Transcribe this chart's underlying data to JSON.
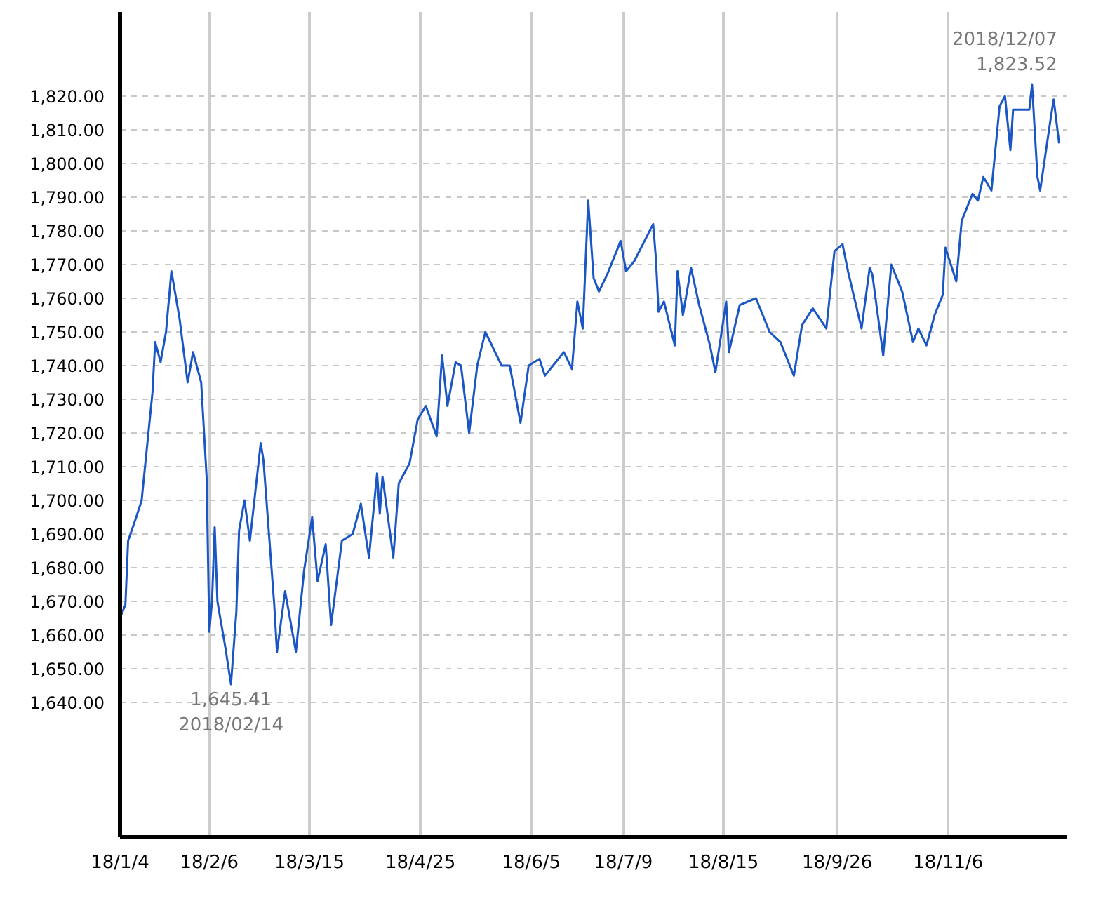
{
  "chart_data": {
    "type": "line",
    "x": [
      "2018-01-04",
      "2018-01-06",
      "2018-01-07",
      "2018-01-10",
      "2018-01-12",
      "2018-01-16",
      "2018-01-17",
      "2018-01-19",
      "2018-01-21",
      "2018-01-23",
      "2018-01-26",
      "2018-01-29",
      "2018-01-31",
      "2018-02-03",
      "2018-02-05",
      "2018-02-06",
      "2018-02-07",
      "2018-02-08",
      "2018-02-09",
      "2018-02-12",
      "2018-02-14",
      "2018-02-16",
      "2018-02-17",
      "2018-02-19",
      "2018-02-21",
      "2018-02-25",
      "2018-02-26",
      "2018-03-02",
      "2018-03-03",
      "2018-03-06",
      "2018-03-10",
      "2018-03-13",
      "2018-03-16",
      "2018-03-18",
      "2018-03-21",
      "2018-03-23",
      "2018-03-27",
      "2018-03-31",
      "2018-04-03",
      "2018-04-06",
      "2018-04-09",
      "2018-04-10",
      "2018-04-11",
      "2018-04-15",
      "2018-04-17",
      "2018-04-21",
      "2018-04-24",
      "2018-04-27",
      "2018-05-01",
      "2018-05-03",
      "2018-05-05",
      "2018-05-08",
      "2018-05-10",
      "2018-05-13",
      "2018-05-16",
      "2018-05-19",
      "2018-05-25",
      "2018-05-28",
      "2018-06-01",
      "2018-06-04",
      "2018-06-08",
      "2018-06-10",
      "2018-06-17",
      "2018-06-20",
      "2018-06-22",
      "2018-06-24",
      "2018-06-26",
      "2018-06-28",
      "2018-06-30",
      "2018-07-03",
      "2018-07-08",
      "2018-07-10",
      "2018-07-13",
      "2018-07-20",
      "2018-07-21",
      "2018-07-22",
      "2018-07-24",
      "2018-07-28",
      "2018-07-29",
      "2018-07-31",
      "2018-08-03",
      "2018-08-06",
      "2018-08-10",
      "2018-08-12",
      "2018-08-16",
      "2018-08-17",
      "2018-08-21",
      "2018-08-27",
      "2018-09-01",
      "2018-09-05",
      "2018-09-10",
      "2018-09-13",
      "2018-09-17",
      "2018-09-22",
      "2018-09-25",
      "2018-09-28",
      "2018-09-30",
      "2018-10-05",
      "2018-10-08",
      "2018-10-09",
      "2018-10-13",
      "2018-10-16",
      "2018-10-20",
      "2018-10-24",
      "2018-10-26",
      "2018-10-29",
      "2018-11-01",
      "2018-11-04",
      "2018-11-05",
      "2018-11-09",
      "2018-11-11",
      "2018-11-15",
      "2018-11-17",
      "2018-11-19",
      "2018-11-22",
      "2018-11-25",
      "2018-11-27",
      "2018-11-29",
      "2018-11-30",
      "2018-12-06",
      "2018-12-07",
      "2018-12-09",
      "2018-12-10",
      "2018-12-14",
      "2018-12-15",
      "2018-12-17"
    ],
    "series": [
      {
        "color": "#1a56c4",
        "values": [
          1665,
          1669,
          1688,
          1695,
          1700,
          1732,
          1747,
          1741,
          1750,
          1768,
          1754,
          1735,
          1744,
          1735,
          1707,
          1661,
          1670,
          1692,
          1670,
          1656,
          1645.41,
          1667,
          1691,
          1700,
          1688,
          1717,
          1712,
          1669,
          1655,
          1673,
          1655,
          1679,
          1695,
          1676,
          1687,
          1663,
          1688,
          1690,
          1699,
          1683,
          1708,
          1696,
          1707,
          1683,
          1705,
          1711,
          1724,
          1728,
          1719,
          1743,
          1728,
          1741,
          1740,
          1720,
          1740,
          1750,
          1740,
          1740,
          1723,
          1740,
          1742,
          1737,
          1744,
          1739,
          1759,
          1751,
          1789,
          1766,
          1762,
          1767,
          1777,
          1768,
          1771,
          1782,
          1772,
          1756,
          1759,
          1746,
          1768,
          1755,
          1769,
          1758,
          1746,
          1738,
          1759,
          1744,
          1758,
          1760,
          1750,
          1747,
          1737,
          1752,
          1757,
          1751,
          1774,
          1776,
          1768,
          1751,
          1769,
          1767,
          1743,
          1770,
          1762,
          1747,
          1751,
          1746,
          1755,
          1761,
          1775,
          1765,
          1783,
          1791,
          1789,
          1796,
          1792,
          1817,
          1820,
          1804,
          1816,
          1816,
          1823.52,
          1796,
          1792,
          1814,
          1819,
          1806
        ]
      }
    ],
    "xlim": [
      "2018-01-04",
      "2018-12-20"
    ],
    "xticks": [
      {
        "value": "2018-01-04",
        "label": "18/1/4"
      },
      {
        "value": "2018-02-06",
        "label": "18/2/6"
      },
      {
        "value": "2018-03-15",
        "label": "18/3/15"
      },
      {
        "value": "2018-04-25",
        "label": "18/4/25"
      },
      {
        "value": "2018-06-05",
        "label": "18/6/5"
      },
      {
        "value": "2018-07-09",
        "label": "18/7/9"
      },
      {
        "value": "2018-08-15",
        "label": "18/8/15"
      },
      {
        "value": "2018-09-26",
        "label": "18/9/26"
      },
      {
        "value": "2018-11-06",
        "label": "18/11/6"
      }
    ],
    "ylim": [
      1600,
      1845
    ],
    "yticks": [
      {
        "value": 1640,
        "label": "1,640.00"
      },
      {
        "value": 1650,
        "label": "1,650.00"
      },
      {
        "value": 1660,
        "label": "1,660.00"
      },
      {
        "value": 1670,
        "label": "1,670.00"
      },
      {
        "value": 1680,
        "label": "1,680.00"
      },
      {
        "value": 1690,
        "label": "1,690.00"
      },
      {
        "value": 1700,
        "label": "1,700.00"
      },
      {
        "value": 1710,
        "label": "1,710.00"
      },
      {
        "value": 1720,
        "label": "1,720.00"
      },
      {
        "value": 1730,
        "label": "1,730.00"
      },
      {
        "value": 1740,
        "label": "1,740.00"
      },
      {
        "value": 1750,
        "label": "1,750.00"
      },
      {
        "value": 1760,
        "label": "1,760.00"
      },
      {
        "value": 1770,
        "label": "1,770.00"
      },
      {
        "value": 1780,
        "label": "1,780.00"
      },
      {
        "value": 1790,
        "label": "1,790.00"
      },
      {
        "value": 1800,
        "label": "1,800.00"
      },
      {
        "value": 1810,
        "label": "1,810.00"
      },
      {
        "value": 1820,
        "label": "1,820.00"
      }
    ],
    "grid": true,
    "line_style": "solid",
    "annotations": [
      {
        "text": "1,645.41\n2018/02/14",
        "x": "2018-02-14",
        "y": 1645.41
      },
      {
        "text": "2018/12/07\n1,823.52",
        "x": "2018-12-07",
        "y": 1823.52
      }
    ]
  }
}
